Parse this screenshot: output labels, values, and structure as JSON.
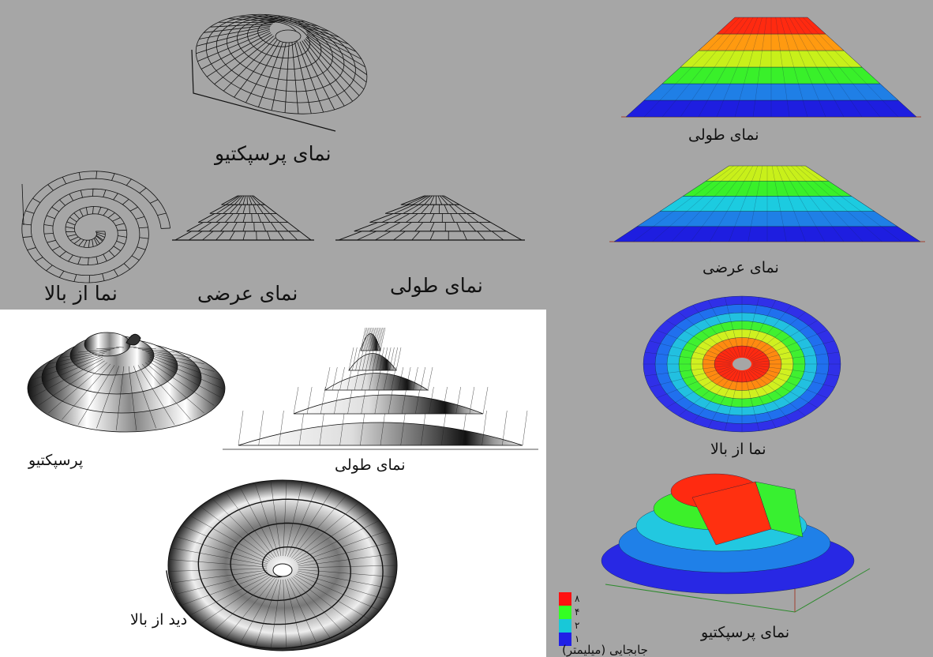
{
  "wireframe_panel": {
    "perspective_caption": "نمای پرسپکتیو",
    "top_caption": "نما از بالا",
    "cross_caption": "نمای عرضی",
    "long_caption": "نمای طولی"
  },
  "shaded_panel": {
    "perspective_caption": "پرسپکتیو",
    "long_caption": "نمای طولی",
    "top_caption": "دید از بالا"
  },
  "fem_panel": {
    "long_caption": "نمای طولی",
    "cross_caption": "نمای عرضی",
    "top_caption": "نما از بالا",
    "perspective_caption": "نمای پرسپکتیو",
    "legend": {
      "title": "جابجایی (میلیمتر)",
      "items": [
        {
          "label": "۸",
          "color": "#ff1010"
        },
        {
          "label": "۴",
          "color": "#33ff22"
        },
        {
          "label": "۲",
          "color": "#18c8d8"
        },
        {
          "label": "۱",
          "color": "#2020e6"
        }
      ]
    }
  }
}
